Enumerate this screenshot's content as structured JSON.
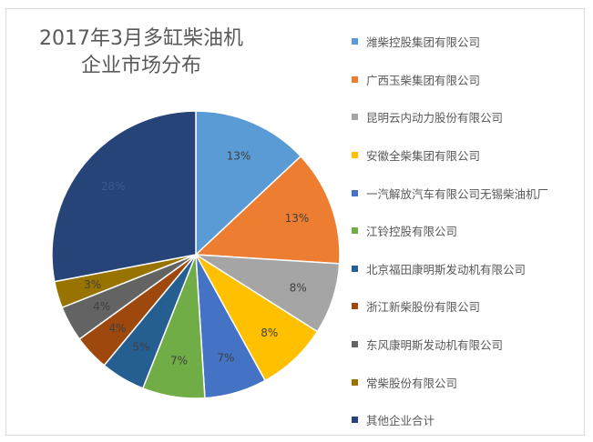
{
  "chart_data": {
    "type": "pie",
    "title_lines": [
      "2017年3月多缸柴油机",
      "企业市场分布"
    ],
    "series": [
      {
        "name": "潍柴控股集团有限公司",
        "value": 13,
        "label": "13%",
        "color": "#5b9bd5"
      },
      {
        "name": "广西玉柴集团有限公司",
        "value": 13,
        "label": "13%",
        "color": "#ed7d31"
      },
      {
        "name": "昆明云内动力股份有限公司",
        "value": 8,
        "label": "8%",
        "color": "#a5a5a5"
      },
      {
        "name": "安徽全柴集团有限公司",
        "value": 8,
        "label": "8%",
        "color": "#ffc000"
      },
      {
        "name": "一汽解放汽车有限公司无锡柴油机厂",
        "value": 7,
        "label": "7%",
        "color": "#4472c4"
      },
      {
        "name": "江铃控股有限公司",
        "value": 7,
        "label": "7%",
        "color": "#70ad47"
      },
      {
        "name": "北京福田康明斯发动机有限公司",
        "value": 5,
        "label": "5%",
        "color": "#255e91"
      },
      {
        "name": "浙江新柴股份有限公司",
        "value": 4,
        "label": "4%",
        "color": "#9e480e"
      },
      {
        "name": "东风康明斯发动机有限公司",
        "value": 4,
        "label": "4%",
        "color": "#636363"
      },
      {
        "name": "常柴股份有限公司",
        "value": 3,
        "label": "3%",
        "color": "#997300"
      },
      {
        "name": "其他企业合计",
        "value": 28,
        "label": "28%",
        "color": "#264478"
      }
    ],
    "legend_position": "right"
  }
}
